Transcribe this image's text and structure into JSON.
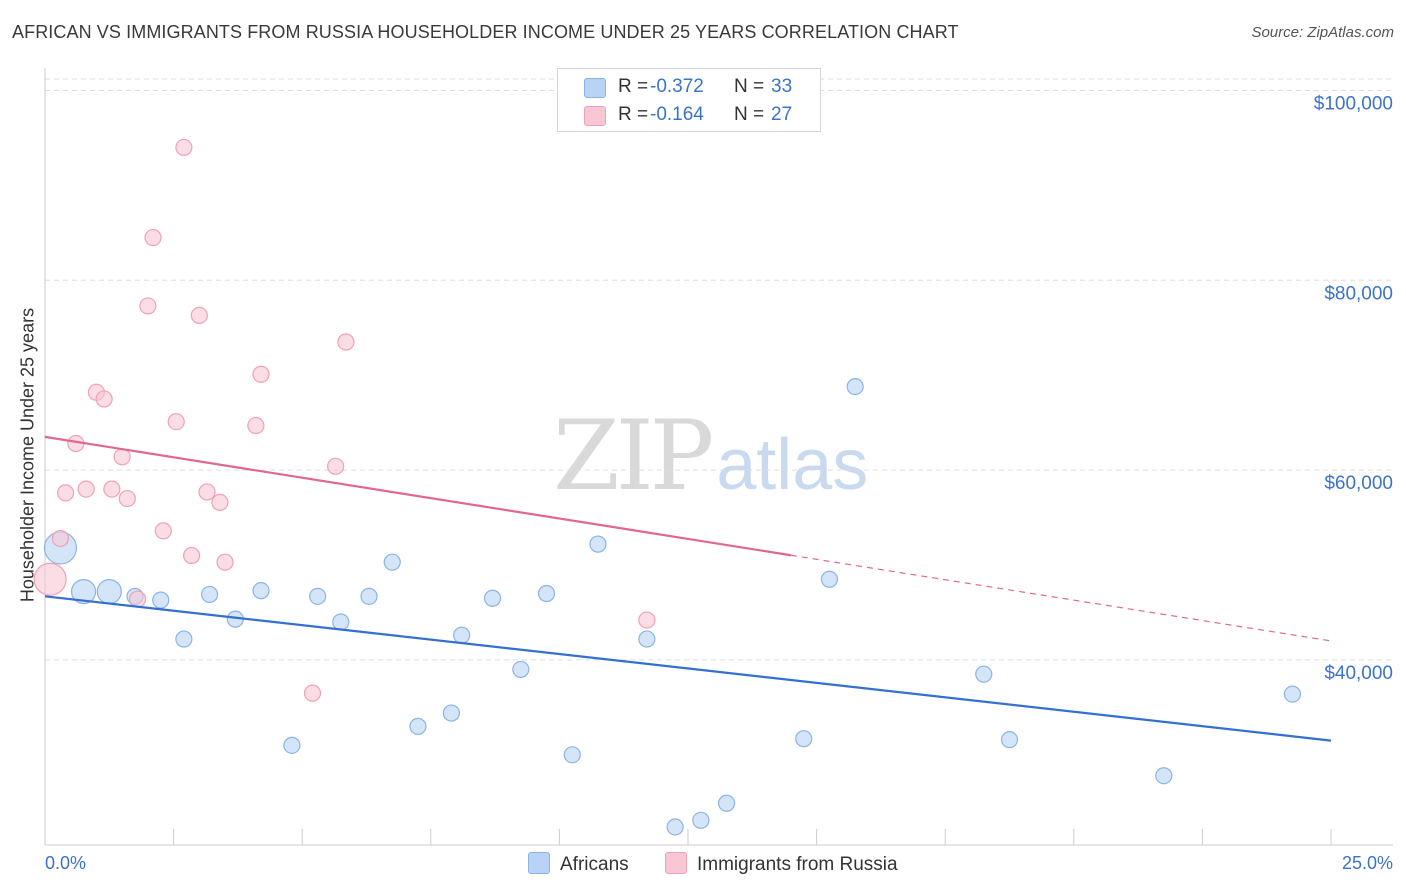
{
  "title": "AFRICAN VS IMMIGRANTS FROM RUSSIA HOUSEHOLDER INCOME UNDER 25 YEARS CORRELATION CHART",
  "source": "Source: ZipAtlas.com",
  "watermark": {
    "zip": "ZIP",
    "atlas": "atlas"
  },
  "colors": {
    "blue_fill": "#b8d3f3",
    "blue_stroke": "#8ab4e6",
    "blue_line": "#3370d0",
    "pink_fill": "#f9c6d3",
    "pink_stroke": "#f0a0b8",
    "pink_line": "#e06890",
    "axis_text": "#3b73c8",
    "grid": "#dddddd"
  },
  "legend": {
    "rows": [
      {
        "r_label": "R =",
        "r_value": "-0.372",
        "n_label": "N =",
        "n_value": "33"
      },
      {
        "r_label": "R =",
        "r_value": "-0.164",
        "n_label": "N =",
        "n_value": "27"
      }
    ]
  },
  "bottom_legend": {
    "series1": "Africans",
    "series2": "Immigrants from Russia"
  },
  "chart_data": {
    "type": "scatter",
    "title": "AFRICAN VS IMMIGRANTS FROM RUSSIA HOUSEHOLDER INCOME UNDER 25 YEARS CORRELATION CHART",
    "xlabel": "",
    "ylabel": "Householder Income Under 25 years",
    "xlim": [
      0,
      25
    ],
    "ylim": [
      20500,
      103000
    ],
    "x_tick_labels": [
      "0.0%",
      "25.0%"
    ],
    "y_ticks": [
      40000,
      60000,
      80000,
      100000
    ],
    "y_tick_labels": [
      "$40,000",
      "$60,000",
      "$80,000",
      "$100,000"
    ],
    "series": [
      {
        "name": "Africans",
        "r": -0.372,
        "n": 33,
        "trend": {
          "x0": 0,
          "y0": 46700,
          "x1": 25,
          "y1": 31500,
          "dashed_from": null
        },
        "points": [
          {
            "x": 0.3,
            "y": 51800,
            "s": 3
          },
          {
            "x": 0.75,
            "y": 47200,
            "s": 2
          },
          {
            "x": 1.25,
            "y": 47200,
            "s": 2
          },
          {
            "x": 1.75,
            "y": 46700,
            "s": 1
          },
          {
            "x": 2.25,
            "y": 46300,
            "s": 1
          },
          {
            "x": 2.7,
            "y": 42200,
            "s": 1
          },
          {
            "x": 3.2,
            "y": 46900,
            "s": 1
          },
          {
            "x": 3.7,
            "y": 44300,
            "s": 1
          },
          {
            "x": 4.2,
            "y": 47300,
            "s": 1
          },
          {
            "x": 4.8,
            "y": 31000,
            "s": 1
          },
          {
            "x": 5.3,
            "y": 46700,
            "s": 1
          },
          {
            "x": 5.75,
            "y": 44000,
            "s": 1
          },
          {
            "x": 6.3,
            "y": 46700,
            "s": 1
          },
          {
            "x": 6.75,
            "y": 50300,
            "s": 1
          },
          {
            "x": 7.25,
            "y": 33000,
            "s": 1
          },
          {
            "x": 7.9,
            "y": 34400,
            "s": 1
          },
          {
            "x": 8.1,
            "y": 42600,
            "s": 1
          },
          {
            "x": 8.7,
            "y": 46500,
            "s": 1
          },
          {
            "x": 9.25,
            "y": 39000,
            "s": 1
          },
          {
            "x": 9.75,
            "y": 47000,
            "s": 1
          },
          {
            "x": 10.25,
            "y": 30000,
            "s": 1
          },
          {
            "x": 10.75,
            "y": 52200,
            "s": 1
          },
          {
            "x": 11.7,
            "y": 42200,
            "s": 1
          },
          {
            "x": 12.25,
            "y": 22400,
            "s": 1
          },
          {
            "x": 12.75,
            "y": 23100,
            "s": 1
          },
          {
            "x": 13.25,
            "y": 24900,
            "s": 1
          },
          {
            "x": 14.75,
            "y": 31700,
            "s": 1
          },
          {
            "x": 15.25,
            "y": 48500,
            "s": 1
          },
          {
            "x": 15.75,
            "y": 68800,
            "s": 1
          },
          {
            "x": 18.25,
            "y": 38500,
            "s": 1
          },
          {
            "x": 18.75,
            "y": 31600,
            "s": 1
          },
          {
            "x": 21.75,
            "y": 27800,
            "s": 1
          },
          {
            "x": 24.25,
            "y": 36400,
            "s": 1
          }
        ]
      },
      {
        "name": "Immigrants from Russia",
        "r": -0.164,
        "n": 27,
        "trend": {
          "x0": 0,
          "y0": 63500,
          "x1": 25,
          "y1": 42000,
          "dashed_from": 14.5
        },
        "points": [
          {
            "x": 0.1,
            "y": 48500,
            "s": 3
          },
          {
            "x": 0.3,
            "y": 52800,
            "s": 1
          },
          {
            "x": 0.4,
            "y": 57600,
            "s": 1
          },
          {
            "x": 0.6,
            "y": 62800,
            "s": 1
          },
          {
            "x": 0.8,
            "y": 58000,
            "s": 1
          },
          {
            "x": 1.0,
            "y": 68200,
            "s": 1
          },
          {
            "x": 1.15,
            "y": 67500,
            "s": 1
          },
          {
            "x": 1.3,
            "y": 58000,
            "s": 1
          },
          {
            "x": 1.5,
            "y": 61400,
            "s": 1
          },
          {
            "x": 1.6,
            "y": 57000,
            "s": 1
          },
          {
            "x": 1.8,
            "y": 46400,
            "s": 1
          },
          {
            "x": 2.0,
            "y": 77300,
            "s": 1
          },
          {
            "x": 2.1,
            "y": 84500,
            "s": 1
          },
          {
            "x": 2.3,
            "y": 53600,
            "s": 1
          },
          {
            "x": 2.55,
            "y": 65100,
            "s": 1
          },
          {
            "x": 2.7,
            "y": 94000,
            "s": 1
          },
          {
            "x": 2.85,
            "y": 51000,
            "s": 1
          },
          {
            "x": 3.0,
            "y": 76300,
            "s": 1
          },
          {
            "x": 3.15,
            "y": 57700,
            "s": 1
          },
          {
            "x": 3.4,
            "y": 56600,
            "s": 1
          },
          {
            "x": 3.5,
            "y": 50300,
            "s": 1
          },
          {
            "x": 4.1,
            "y": 64700,
            "s": 1
          },
          {
            "x": 4.2,
            "y": 70100,
            "s": 1
          },
          {
            "x": 5.2,
            "y": 36500,
            "s": 1
          },
          {
            "x": 5.65,
            "y": 60400,
            "s": 1
          },
          {
            "x": 5.85,
            "y": 73500,
            "s": 1
          },
          {
            "x": 11.7,
            "y": 44200,
            "s": 1
          }
        ]
      }
    ]
  }
}
